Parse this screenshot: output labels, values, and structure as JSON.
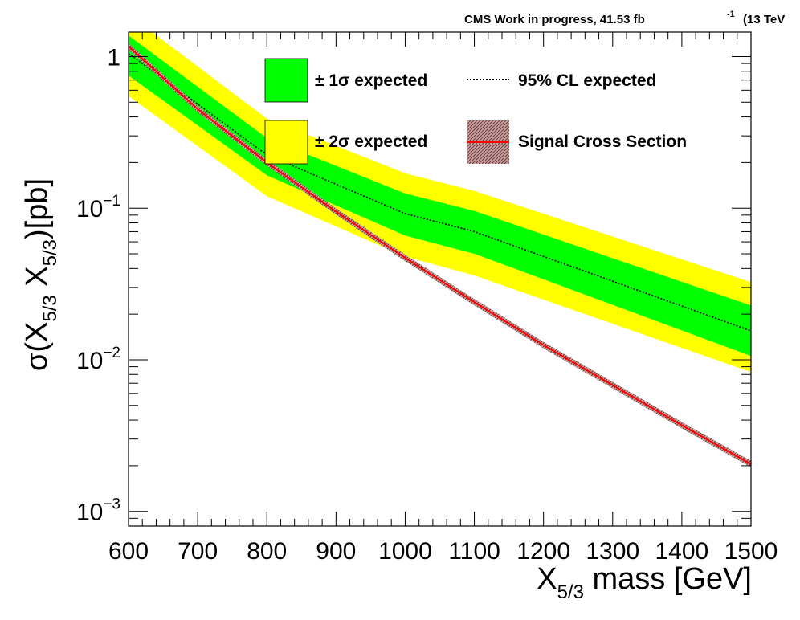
{
  "header": {
    "label": "CMS Work in progress, 41.53 fb",
    "sup": "-1",
    "energy": "(13 TeV"
  },
  "legend": {
    "one_sigma": "± 1σ expected",
    "two_sigma": "± 2σ expected",
    "expected": "95% CL expected",
    "signal": "Signal Cross Section"
  },
  "chart_data": {
    "type": "line",
    "title": "",
    "xlabel": "X5/3 mass [GeV]",
    "ylabel": "σ(X5/3 X̄5/3)[pb]",
    "xlim": [
      600,
      1500
    ],
    "ylim": [
      0.0008,
      1.45
    ],
    "yscale": "log",
    "grid": false,
    "legend_position": "top",
    "x_ticks": [
      600,
      700,
      800,
      900,
      1000,
      1100,
      1200,
      1300,
      1400,
      1500
    ],
    "y_ticks": [
      {
        "value": 1,
        "base": "1",
        "exp": ""
      },
      {
        "value": 0.1,
        "base": "10",
        "exp": "−1"
      },
      {
        "value": 0.01,
        "base": "10",
        "exp": "−2"
      },
      {
        "value": 0.001,
        "base": "10",
        "exp": "−3"
      }
    ],
    "colors": {
      "one_sigma": "#00ff00",
      "two_sigma": "#ffff00",
      "expected": "#000000",
      "signal": "#ff0000",
      "signal_band": "#8b5a5a"
    },
    "x": [
      600,
      800,
      1000,
      1100,
      1500
    ],
    "series": [
      {
        "name": "95% CL expected",
        "values": [
          1.05,
          0.225,
          0.092,
          0.07,
          0.0155
        ]
      },
      {
        "name": "± 1σ expected",
        "low": [
          0.75,
          0.165,
          0.066,
          0.05,
          0.0106
        ],
        "high": [
          1.38,
          0.29,
          0.125,
          0.096,
          0.0228
        ]
      },
      {
        "name": "± 2σ expected",
        "low": [
          0.55,
          0.12,
          0.048,
          0.036,
          0.0083
        ],
        "high": [
          1.9,
          0.39,
          0.17,
          0.13,
          0.0325
        ]
      },
      {
        "name": "Signal Cross Section",
        "x": [
          600,
          700,
          800,
          900,
          1000,
          1100,
          1200,
          1300,
          1400,
          1500
        ],
        "values": [
          1.17,
          0.45,
          0.2,
          0.095,
          0.047,
          0.024,
          0.0125,
          0.0068,
          0.0037,
          0.00205
        ]
      }
    ]
  }
}
